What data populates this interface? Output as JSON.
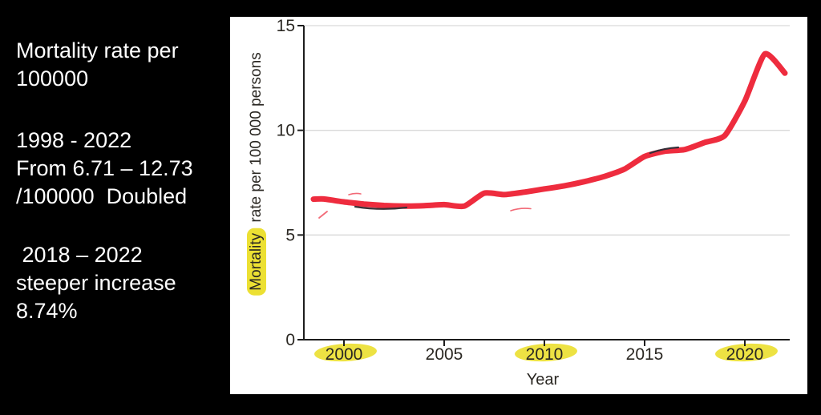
{
  "notes": {
    "block1": [
      "Mortality rate per",
      "100000"
    ],
    "block2": [
      "1998 - 2022",
      "From 6.71 – 12.73",
      "/100000  Doubled"
    ],
    "block3": [
      " 2018 – 2022",
      "steeper increase",
      "8.74%"
    ]
  },
  "chart_data": {
    "type": "line",
    "title": "",
    "xlabel": "Year",
    "ylabel": "Mortality rate per 100 000 persons",
    "ylabel_highlighted_word": "Mortality",
    "ylabel_rest": " rate per 100 000 persons",
    "x": [
      1998,
      1999,
      2000,
      2001,
      2002,
      2003,
      2004,
      2005,
      2006,
      2007,
      2008,
      2009,
      2010,
      2011,
      2012,
      2013,
      2014,
      2015,
      2016,
      2017,
      2018,
      2019,
      2020,
      2021,
      2022
    ],
    "values": [
      6.71,
      6.72,
      6.58,
      6.48,
      6.41,
      6.38,
      6.4,
      6.45,
      6.38,
      7.0,
      6.93,
      7.05,
      7.2,
      7.35,
      7.55,
      7.8,
      8.15,
      8.75,
      9.0,
      9.08,
      9.42,
      9.75,
      11.4,
      13.65,
      12.73
    ],
    "xlim": [
      1997.6,
      2022.6
    ],
    "ylim": [
      0,
      15
    ],
    "yticks": [
      0,
      5,
      10,
      15
    ],
    "xticks": [
      2000,
      2005,
      2010,
      2015,
      2020
    ],
    "highlighted_xticks": [
      2000,
      2010,
      2020
    ],
    "grid": true,
    "legend": null,
    "line_color": "#ee2c3e",
    "stray_mark_color": "#f26a77",
    "highlight_color": "#ece033",
    "axis_color": "#1d1d1d",
    "grid_color": "#d9d9d9",
    "tick_label_color": "#2b2823"
  }
}
